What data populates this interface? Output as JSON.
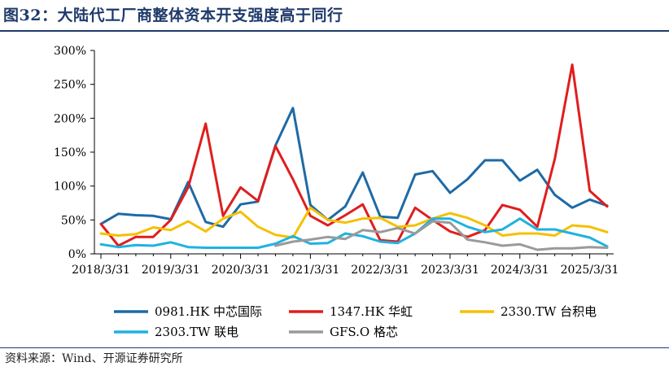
{
  "header": {
    "title": "图32：大陆代工厂商整体资本开支强度高于同行"
  },
  "footer": {
    "source": "资料来源：Wind、开源证券研究所"
  },
  "chart_data": {
    "type": "line",
    "title": "",
    "xlabel": "",
    "ylabel": "",
    "ylim": [
      0,
      300
    ],
    "y_ticks": [
      "0%",
      "50%",
      "100%",
      "150%",
      "200%",
      "250%",
      "300%"
    ],
    "y_tick_values": [
      0,
      50,
      100,
      150,
      200,
      250,
      300
    ],
    "x_tick_labels": [
      "2018/3/31",
      "2019/3/31",
      "2020/3/31",
      "2021/3/31",
      "2022/3/31",
      "2023/3/31",
      "2024/3/31",
      "2025/3/31"
    ],
    "x_start": "2018/3/31",
    "x_end": "2025/9/30",
    "frequency": "quarterly",
    "grid": false,
    "legend_position": "bottom",
    "series": [
      {
        "name": "0981.HK 中芯国际",
        "color": "#1f6aa5",
        "values": [
          44,
          59,
          57,
          56,
          51,
          106,
          47,
          40,
          73,
          77,
          160,
          215,
          72,
          50,
          70,
          120,
          55,
          53,
          117,
          122,
          90,
          110,
          138,
          138,
          108,
          124,
          87,
          68,
          80,
          71
        ]
      },
      {
        "name": "1347.HK 华虹",
        "color": "#e01e1e",
        "values": [
          44,
          12,
          25,
          25,
          50,
          98,
          192,
          56,
          98,
          78,
          159,
          110,
          56,
          42,
          57,
          73,
          20,
          18,
          68,
          50,
          33,
          25,
          35,
          72,
          65,
          40,
          140,
          279,
          93,
          70
        ]
      },
      {
        "name": "2330.TW 台积电",
        "color": "#f5c000",
        "values": [
          30,
          27,
          29,
          39,
          35,
          48,
          33,
          52,
          62,
          40,
          28,
          24,
          68,
          50,
          46,
          52,
          53,
          40,
          42,
          52,
          60,
          53,
          42,
          27,
          30,
          30,
          27,
          42,
          40,
          32
        ]
      },
      {
        "name": "2303.TW 联电",
        "color": "#1fb2e0",
        "values": [
          14,
          10,
          13,
          12,
          17,
          10,
          9,
          9,
          9,
          9,
          15,
          26,
          15,
          16,
          30,
          26,
          18,
          16,
          30,
          52,
          52,
          40,
          32,
          36,
          52,
          36,
          36,
          30,
          24,
          11
        ]
      },
      {
        "name": "GFS.O 格芯",
        "color": "#9a9a9a",
        "values": [
          null,
          null,
          null,
          null,
          null,
          null,
          null,
          null,
          null,
          null,
          12,
          18,
          21,
          25,
          22,
          35,
          32,
          38,
          30,
          48,
          46,
          21,
          17,
          12,
          14,
          6,
          8,
          8,
          10,
          9
        ]
      }
    ]
  }
}
